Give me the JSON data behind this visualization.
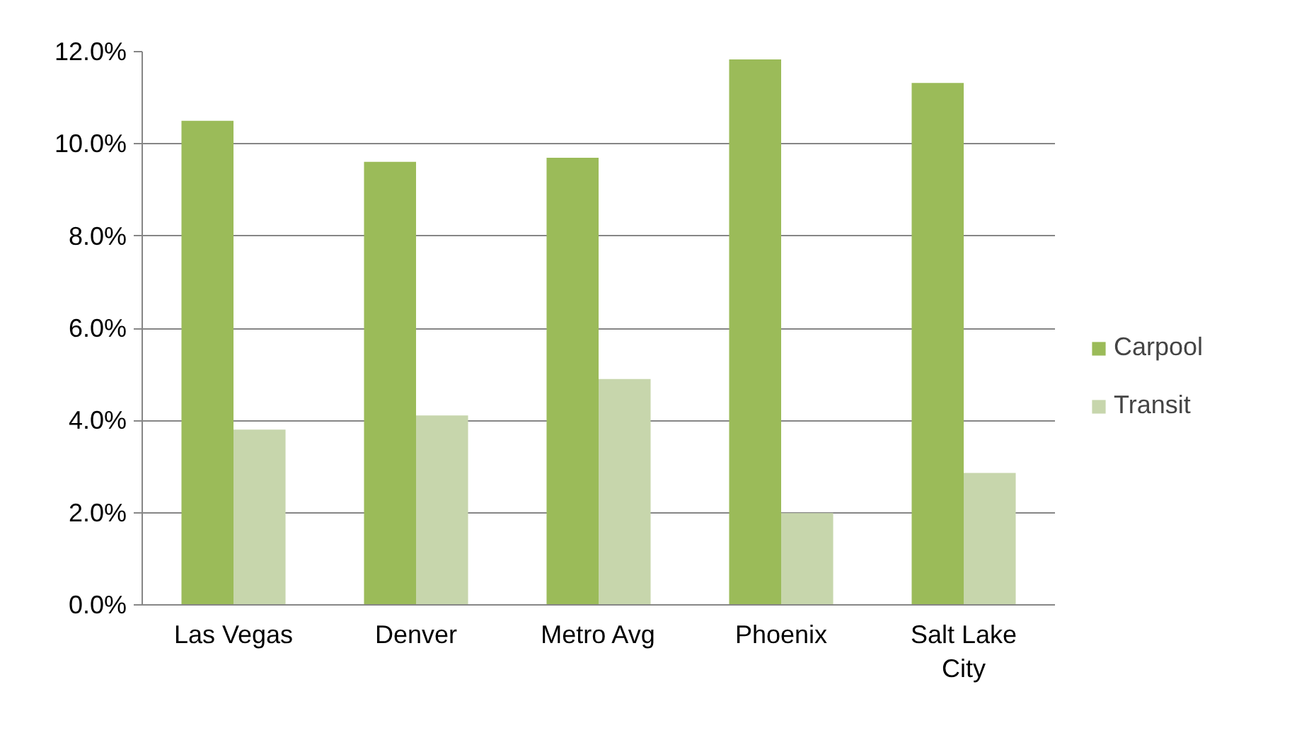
{
  "chart_data": {
    "type": "bar",
    "categories": [
      "Las Vegas",
      "Denver",
      "Metro Avg",
      "Phoenix",
      "Salt Lake City"
    ],
    "series": [
      {
        "name": "Carpool",
        "color": "#9bbb59",
        "values": [
          10.5,
          9.61,
          9.7,
          11.83,
          11.32
        ]
      },
      {
        "name": "Transit",
        "color": "#c7d6ac",
        "values": [
          3.8,
          4.11,
          4.9,
          1.99,
          2.86
        ]
      }
    ],
    "ylim": [
      0,
      12
    ],
    "yticks": [
      {
        "value": 0,
        "label": "0.0%"
      },
      {
        "value": 2,
        "label": "2.0%"
      },
      {
        "value": 4,
        "label": "4.0%"
      },
      {
        "value": 6,
        "label": "6.0%"
      },
      {
        "value": 8,
        "label": "8.0%"
      },
      {
        "value": 10,
        "label": "10.0%"
      },
      {
        "value": 12,
        "label": "12.0%"
      }
    ],
    "grid": "y",
    "legend": "right"
  }
}
